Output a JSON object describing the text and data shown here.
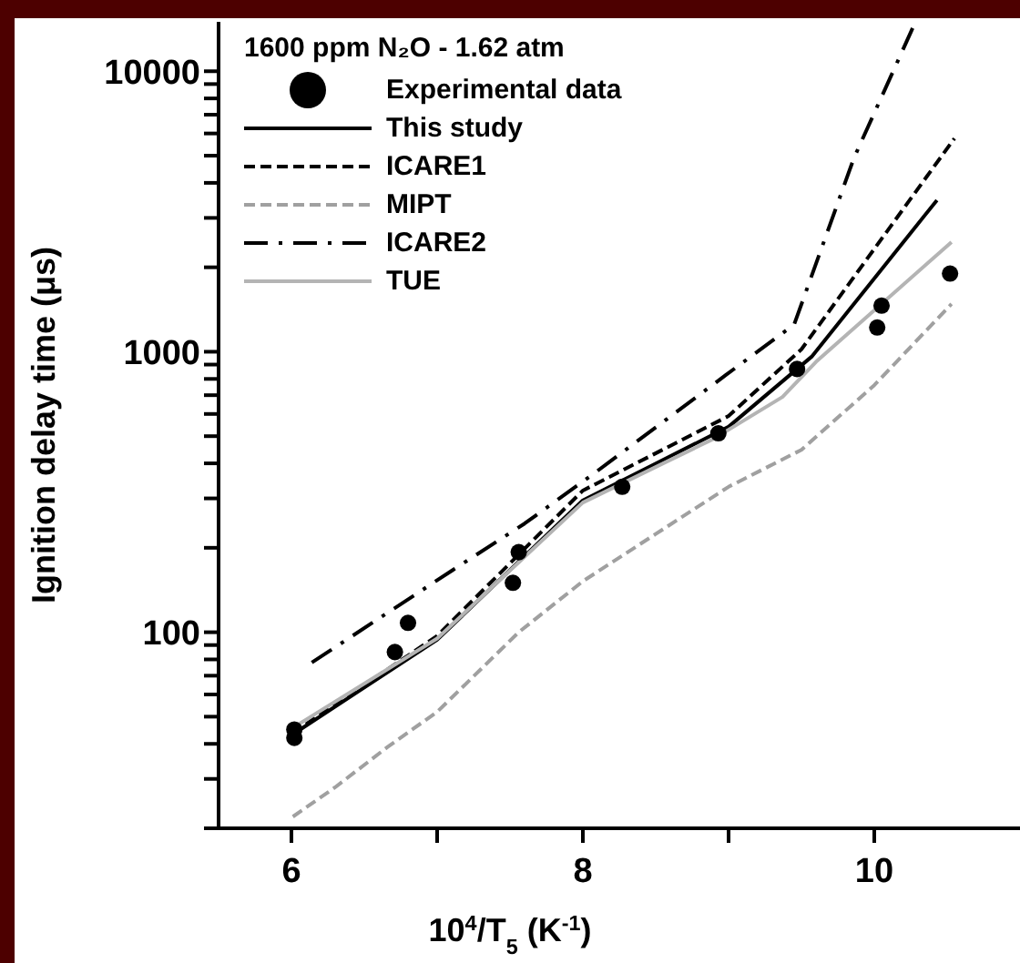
{
  "chart_data": {
    "type": "line",
    "legend_title": "1600 ppm N₂O - 1.62 atm",
    "xlabel": "10$^{4}$/T$_{5}$ (K$^{-1}$)",
    "ylabel": "Ignition delay time (μs)",
    "log": "y",
    "xlim": [
      5.5,
      11
    ],
    "ylim": [
      20,
      15000
    ],
    "xticks": [
      6,
      {
        "value": 7,
        "label": null
      },
      8,
      {
        "value": 9,
        "label": null
      },
      10
    ],
    "yticks": [
      {
        "value": 20,
        "label": null
      },
      {
        "value": 30,
        "label": null
      },
      {
        "value": 40,
        "label": null
      },
      {
        "value": 50,
        "label": null
      },
      {
        "value": 60,
        "label": null
      },
      {
        "value": 70,
        "label": null
      },
      {
        "value": 80,
        "label": null
      },
      {
        "value": 90,
        "label": null
      },
      100,
      {
        "value": 200,
        "label": null
      },
      {
        "value": 300,
        "label": null
      },
      {
        "value": 400,
        "label": null
      },
      {
        "value": 500,
        "label": null
      },
      {
        "value": 600,
        "label": null
      },
      {
        "value": 700,
        "label": null
      },
      {
        "value": 800,
        "label": null
      },
      {
        "value": 900,
        "label": null
      },
      1000,
      {
        "value": 2000,
        "label": null
      },
      {
        "value": 3000,
        "label": null
      },
      {
        "value": 4000,
        "label": null
      },
      {
        "value": 5000,
        "label": null
      },
      {
        "value": 6000,
        "label": null
      },
      {
        "value": 7000,
        "label": null
      },
      {
        "value": 8000,
        "label": null
      },
      {
        "value": 9000,
        "label": null
      },
      10000
    ],
    "grid": false,
    "legend": "top left",
    "series": [
      {
        "name": "Experimental data",
        "type": "scatter",
        "marker": "circle",
        "color": "#000000",
        "x": [
          6.02,
          6.02,
          6.71,
          6.8,
          7.52,
          7.56,
          8.27,
          8.93,
          9.47,
          10.02,
          10.05,
          10.52
        ],
        "values": [
          42,
          45,
          85,
          108,
          150,
          193,
          330,
          512,
          868,
          1220,
          1460,
          1900
        ]
      },
      {
        "name": "This study",
        "line_style": "solid",
        "color": "#000000",
        "x": [
          6.06,
          7.0,
          8.0,
          9.0,
          9.57,
          10.43
        ],
        "values": [
          45,
          94,
          295,
          540,
          960,
          3470
        ]
      },
      {
        "name": "ICARE1",
        "line_style": "dashed",
        "color": "#000000",
        "x": [
          6.1,
          7.0,
          8.0,
          9.0,
          9.5,
          10.55
        ],
        "values": [
          47,
          97,
          320,
          590,
          1020,
          5760
        ]
      },
      {
        "name": "MIPT",
        "line_style": "dashed",
        "color": "#a0a0a0",
        "x": [
          6.01,
          6.3,
          6.66,
          7.0,
          7.56,
          8.0,
          8.5,
          9.0,
          9.5,
          10.0,
          10.53
        ],
        "values": [
          22,
          28,
          39,
          52,
          100,
          152,
          224,
          330,
          447,
          760,
          1480
        ]
      },
      {
        "name": "ICARE2",
        "line_style": "dashdot",
        "color": "#000000",
        "x": [
          6.14,
          7.11,
          7.6,
          8.07,
          8.98,
          9.45,
          9.86,
          10.27
        ],
        "values": [
          78,
          167,
          244,
          366,
          825,
          1250,
          4900,
          14500
        ]
      },
      {
        "name": "TUE",
        "line_style": "solid",
        "color": "#b4b4b4",
        "x": [
          6.05,
          7.0,
          8.0,
          8.9,
          9.37,
          9.6,
          10.53
        ],
        "values": [
          47,
          95,
          290,
          490,
          690,
          920,
          2460
        ]
      }
    ]
  }
}
